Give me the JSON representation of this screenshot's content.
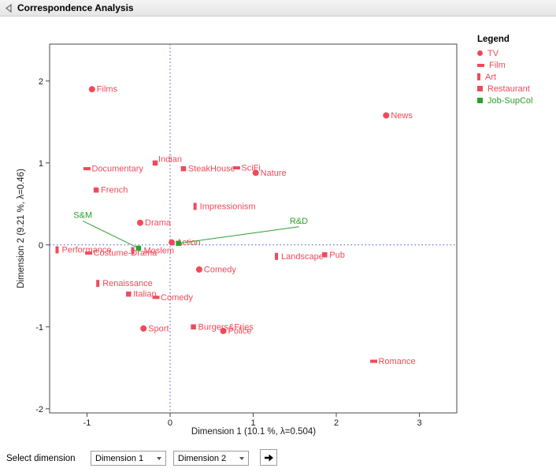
{
  "header": {
    "title": "Correspondence Analysis"
  },
  "legend": {
    "title": "Legend",
    "items": [
      {
        "label": "TV",
        "marker": "circle",
        "color": "#F04A5A"
      },
      {
        "label": "Film",
        "marker": "hbar",
        "color": "#F04A5A"
      },
      {
        "label": "Art",
        "marker": "vbar",
        "color": "#F04A5A"
      },
      {
        "label": "Restaurant",
        "marker": "square",
        "color": "#F04A5A"
      },
      {
        "label": "Job-SupCol",
        "marker": "square",
        "color": "#2CA02C"
      }
    ]
  },
  "controls": {
    "select_dimension_label": "Select dimension",
    "dim1_value": "Dimension 1",
    "dim2_value": "Dimension 2"
  },
  "chart_data": {
    "type": "scatter",
    "title": "Correspondence Analysis",
    "xlabel": "Dimension 1 (10.1 %, λ=0.504)",
    "ylabel": "Dimension 2 (9.21 %, λ=0.46)",
    "xlim": [
      -1.45,
      3.45
    ],
    "ylim": [
      -2.05,
      2.45
    ],
    "xticks": [
      -1,
      0,
      1,
      2,
      3
    ],
    "yticks": [
      -2,
      -1,
      0,
      1,
      2
    ],
    "grid": false,
    "legend_position": "top-right",
    "reference_lines": {
      "x": 0,
      "y": 0,
      "style": "dotted",
      "color": "#3A56C4"
    },
    "series": [
      {
        "name": "TV",
        "marker": "circle",
        "color": "#F04A5A",
        "points": [
          {
            "label": "Films",
            "x": -0.94,
            "y": 1.9
          },
          {
            "label": "News",
            "x": 2.6,
            "y": 1.58
          },
          {
            "label": "Nature",
            "x": 1.03,
            "y": 0.88
          },
          {
            "label": "Drama",
            "x": -0.36,
            "y": 0.27
          },
          {
            "label": "Action",
            "x": 0.02,
            "y": 0.03
          },
          {
            "label": "Comedy",
            "x": 0.35,
            "y": -0.3
          },
          {
            "label": "Sport",
            "x": -0.32,
            "y": -1.02
          },
          {
            "label": "Police",
            "x": 0.64,
            "y": -1.05
          }
        ]
      },
      {
        "name": "Film",
        "marker": "hbar",
        "color": "#F04A5A",
        "points": [
          {
            "label": "Documentary",
            "x": -1.0,
            "y": 0.93
          },
          {
            "label": "SciFi",
            "x": 0.8,
            "y": 0.94
          },
          {
            "label": "Costume-Drama",
            "x": -0.98,
            "y": -0.1
          },
          {
            "label": "Comedy",
            "x": -0.17,
            "y": -0.64
          },
          {
            "label": "Romance",
            "x": 2.45,
            "y": -1.42
          }
        ]
      },
      {
        "name": "Art",
        "marker": "vbar",
        "color": "#F04A5A",
        "points": [
          {
            "label": "Performance",
            "x": -1.36,
            "y": -0.06
          },
          {
            "label": "Impressionism",
            "x": 0.3,
            "y": 0.47
          },
          {
            "label": "Renaissance",
            "x": -0.87,
            "y": -0.47
          },
          {
            "label": "Landscape",
            "x": 1.28,
            "y": -0.14
          },
          {
            "label": "Moslem",
            "x": -0.45,
            "y": -0.07,
            "label_dx": 8
          }
        ]
      },
      {
        "name": "Restaurant",
        "marker": "square",
        "color": "#F04A5A",
        "points": [
          {
            "label": "Indian",
            "x": -0.18,
            "y": 1.0,
            "label_dx": -2,
            "label_dy": -5
          },
          {
            "label": "SteakHouse",
            "x": 0.16,
            "y": 0.93
          },
          {
            "label": "French",
            "x": -0.89,
            "y": 0.67
          },
          {
            "label": "Italian",
            "x": -0.5,
            "y": -0.6
          },
          {
            "label": "Pub",
            "x": 1.86,
            "y": -0.12
          },
          {
            "label": "Burgers&Fries",
            "x": 0.28,
            "y": -1.0
          }
        ]
      },
      {
        "name": "Job-SupCol",
        "marker": "square",
        "color": "#2CA02C",
        "points": [
          {
            "label": "S&M",
            "x": -0.38,
            "y": -0.04,
            "label_x": -1.05,
            "label_y": 0.33
          },
          {
            "label": "R&D",
            "x": 0.1,
            "y": 0.02,
            "label_x": 1.55,
            "label_y": 0.26
          }
        ]
      }
    ]
  }
}
